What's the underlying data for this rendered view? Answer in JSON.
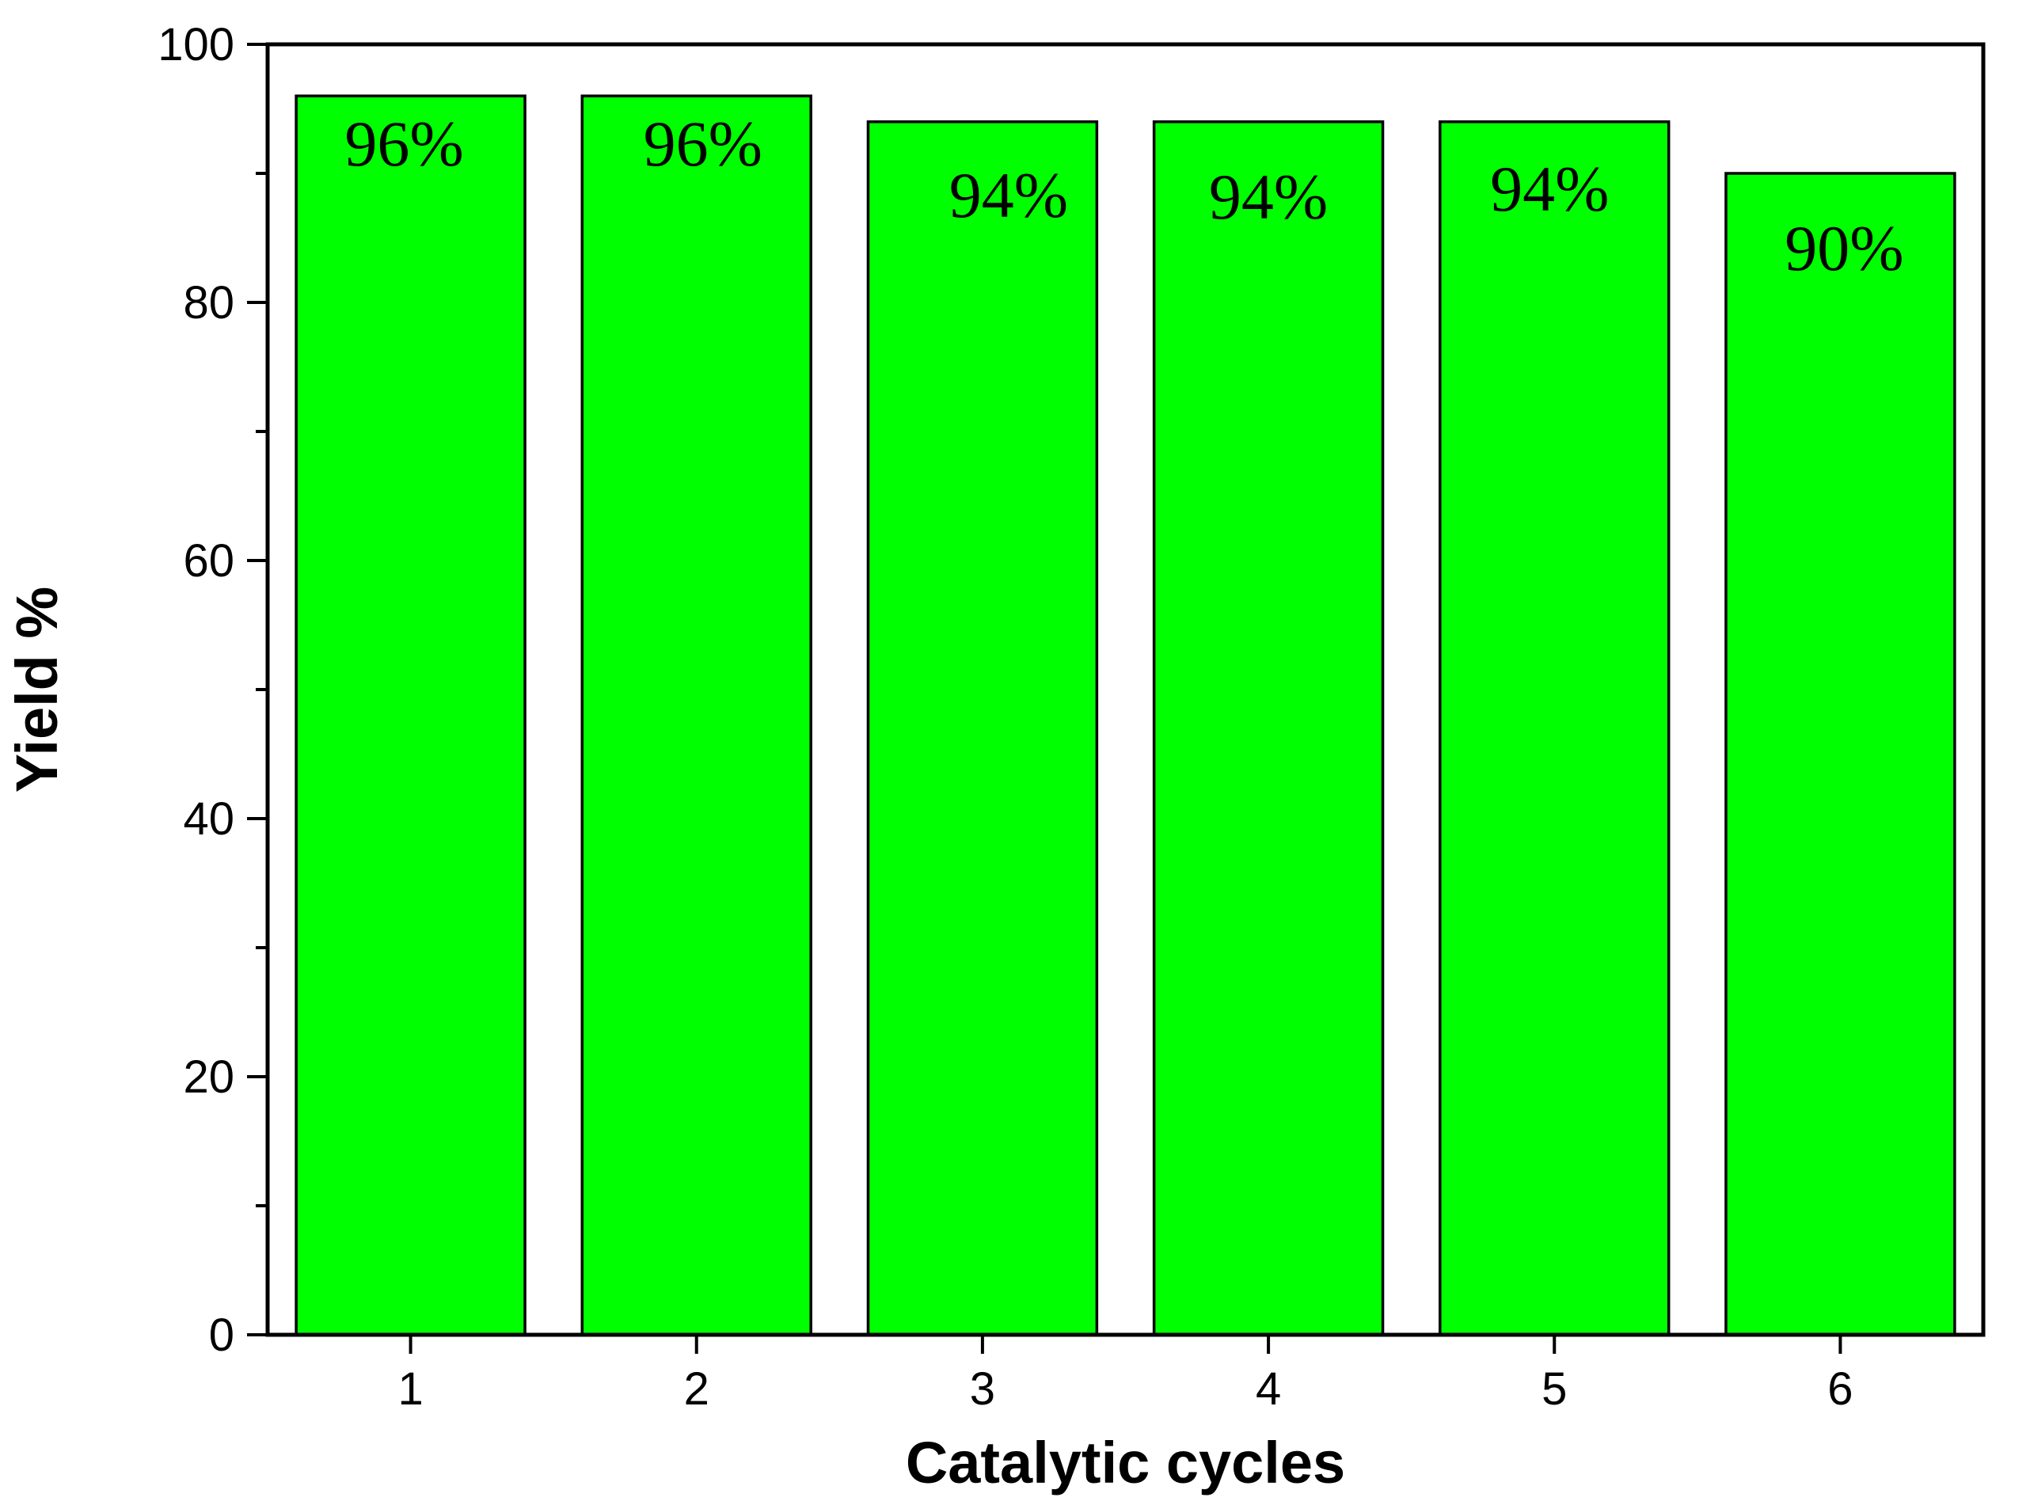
{
  "chart_data": {
    "type": "bar",
    "title": "",
    "xlabel": "Catalytic cycles",
    "ylabel": "Yield %",
    "categories": [
      "1",
      "2",
      "3",
      "4",
      "5",
      "6"
    ],
    "values": [
      96,
      96,
      94,
      94,
      94,
      90
    ],
    "data_labels": [
      "96%",
      "96%",
      "94%",
      "94%",
      "94%",
      "90%"
    ],
    "ylim": [
      0,
      100
    ],
    "yticks": [
      0,
      20,
      40,
      60,
      80,
      100
    ],
    "yticks_minor": [
      10,
      30,
      50,
      70,
      90
    ],
    "ytick_labels": [
      "0",
      "20",
      "40",
      "60",
      "80",
      "100"
    ],
    "grid": false,
    "legend": "none",
    "bar_color": "#00ff00",
    "bar_edge_color": "#000000"
  }
}
